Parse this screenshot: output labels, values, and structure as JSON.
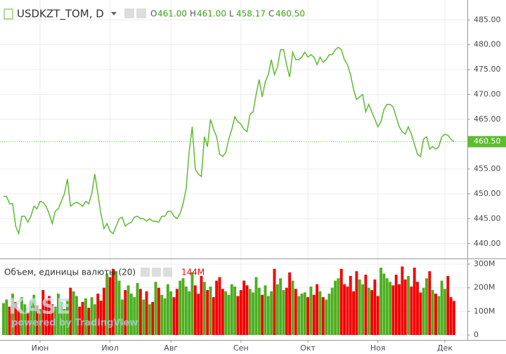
{
  "chart_data": [
    {
      "type": "line",
      "title": "USDKZT_TOM, D",
      "ohlc": [
        {
          "key": "O",
          "text": "461.00"
        },
        {
          "key": "H",
          "text": "461.00"
        },
        {
          "key": "L",
          "text": "458.17"
        },
        {
          "key": "C",
          "text": "460.50"
        }
      ],
      "last_value_label": "460.50",
      "color": "#5cbd2f",
      "categories": [
        null,
        null,
        null,
        null,
        null,
        null,
        null,
        null,
        null,
        null,
        null,
        null,
        "Июн",
        null,
        null,
        null,
        null,
        null,
        null,
        null,
        null,
        null,
        null,
        null,
        null,
        null,
        null,
        null,
        null,
        null,
        null,
        null,
        null,
        null,
        null,
        "Июл",
        null,
        null,
        null,
        null,
        null,
        null,
        null,
        null,
        null,
        null,
        null,
        null,
        null,
        null,
        null,
        null,
        null,
        null,
        null,
        "Авг",
        null,
        null,
        null,
        null,
        null,
        null,
        null,
        null,
        null,
        null,
        null,
        null,
        null,
        null,
        null,
        null,
        null,
        null,
        null,
        null,
        null,
        null,
        "Сен",
        null,
        null,
        null,
        null,
        null,
        null,
        null,
        null,
        null,
        null,
        null,
        null,
        null,
        null,
        null,
        null,
        null,
        null,
        null,
        null,
        null,
        "Окт",
        null,
        null,
        null,
        null,
        null,
        null,
        null,
        null,
        null,
        null,
        null,
        null,
        null,
        null,
        null,
        null,
        null,
        null,
        null,
        null,
        null,
        null,
        "Ноя",
        null,
        null,
        null,
        null,
        null,
        null,
        null,
        null,
        null,
        null,
        null,
        null,
        null,
        null,
        null,
        null,
        null,
        null,
        null,
        null,
        null,
        "Дек",
        null,
        null,
        null
      ],
      "values": [
        449.5,
        449.5,
        448,
        448,
        443.5,
        442,
        445.5,
        445.5,
        444.3,
        445.5,
        447.5,
        447,
        448.5,
        448.3,
        447.5,
        446,
        444,
        446.5,
        447,
        448.5,
        450,
        453,
        447.5,
        448,
        448.3,
        448,
        447.5,
        448.5,
        448,
        450,
        454,
        450,
        446,
        443,
        444,
        442.5,
        442,
        443.5,
        445,
        445.3,
        443.5,
        444,
        444.3,
        445.3,
        445.5,
        445,
        445,
        444.5,
        445,
        444.5,
        444.5,
        444.3,
        445.5,
        445.5,
        446.5,
        446.5,
        445.5,
        445,
        446,
        448,
        451,
        458.5,
        463.5,
        455,
        454,
        453.5,
        461.5,
        459.5,
        465,
        463,
        461.5,
        458,
        457.5,
        458.3,
        461,
        463,
        465.5,
        464.5,
        464,
        463,
        462.5,
        466,
        466.5,
        470,
        473,
        469.5,
        472.5,
        474,
        477,
        474,
        475.5,
        479,
        479,
        476,
        473.5,
        478.5,
        477,
        477,
        477.5,
        478.5,
        477.5,
        478,
        477.5,
        476,
        477.5,
        476.5,
        477,
        478,
        478,
        479,
        479.5,
        479,
        477,
        476,
        474,
        471,
        469,
        469.5,
        470,
        466.5,
        468,
        466.5,
        465,
        463.5,
        464.5,
        467,
        468,
        468,
        467.5,
        465.5,
        463.5,
        462.5,
        462,
        463.5,
        462,
        460,
        458,
        457.5,
        461,
        461.5,
        459,
        459.5,
        459,
        459.5,
        461.5,
        462,
        461.8,
        461,
        460.5
      ],
      "ylim": [
        437,
        489
      ],
      "yticks": [
        {
          "value": 440,
          "label": "440.00"
        },
        {
          "value": 445,
          "label": "445.00"
        },
        {
          "value": 450,
          "label": "450.00"
        },
        {
          "value": 455,
          "label": "455.00"
        },
        {
          "value": 465,
          "label": "465.00"
        },
        {
          "value": 470,
          "label": "470.00"
        },
        {
          "value": 475,
          "label": "475.00"
        },
        {
          "value": 480,
          "label": "480.00"
        },
        {
          "value": 485,
          "label": "485.00"
        }
      ],
      "grid": true
    },
    {
      "type": "bar",
      "title": "Объем, единицы валюты (20)",
      "last_value_label": "144M",
      "colors": {
        "up": "#4caf1f",
        "down": "#f40000"
      },
      "values": [
        135,
        150,
        120,
        175,
        140,
        105,
        160,
        130,
        95,
        145,
        170,
        125,
        110,
        190,
        150,
        165,
        130,
        120,
        175,
        140,
        110,
        150,
        200,
        185,
        165,
        120,
        140,
        155,
        115,
        160,
        130,
        175,
        145,
        200,
        260,
        245,
        280,
        270,
        230,
        150,
        190,
        210,
        175,
        160,
        220,
        195,
        150,
        185,
        130,
        140,
        225,
        200,
        170,
        155,
        215,
        185,
        160,
        195,
        230,
        240,
        205,
        185,
        265,
        210,
        175,
        250,
        225,
        190,
        205,
        160,
        230,
        245,
        195,
        185,
        170,
        215,
        205,
        165,
        190,
        230,
        210,
        195,
        180,
        245,
        200,
        170,
        210,
        165,
        185,
        280,
        215,
        240,
        190,
        200,
        265,
        230,
        195,
        165,
        175,
        180,
        160,
        205,
        170,
        215,
        185,
        160,
        150,
        175,
        200,
        230,
        240,
        280,
        215,
        205,
        250,
        185,
        270,
        235,
        215,
        255,
        200,
        190,
        235,
        165,
        285,
        260,
        240,
        225,
        210,
        255,
        215,
        290,
        235,
        250,
        205,
        285,
        225,
        180,
        200,
        240,
        270,
        190,
        175,
        165,
        230,
        195,
        250,
        160,
        144
      ],
      "ylim": [
        -21,
        318
      ],
      "yticks": [
        0,
        {
          "value": 100,
          "label": "100M"
        },
        {
          "value": 200,
          "label": "200M"
        },
        {
          "value": 300,
          "label": "300M"
        }
      ],
      "grid": true
    }
  ],
  "watermark": {
    "logo": "KASE",
    "powered": "powered by TradingView"
  }
}
